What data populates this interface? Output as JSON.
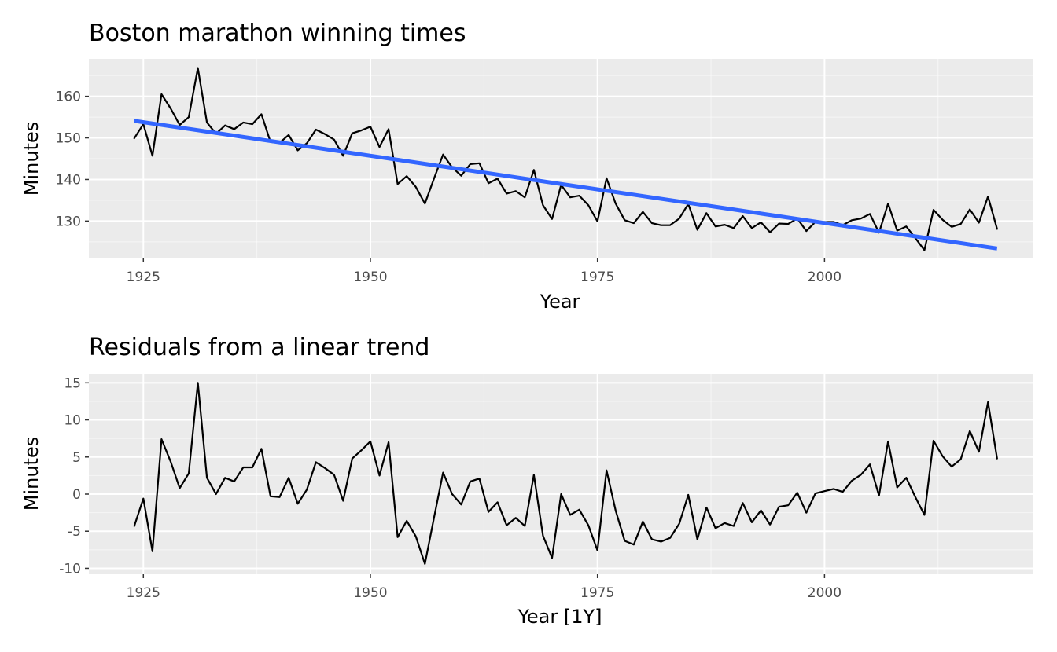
{
  "chart_data": [
    {
      "type": "line",
      "title": "Boston marathon winning times",
      "xlabel": "Year",
      "ylabel": "Minutes",
      "xlim": [
        1919,
        2023
      ],
      "ylim": [
        121,
        169
      ],
      "x_ticks": [
        1925,
        1950,
        1975,
        2000
      ],
      "y_ticks": [
        130,
        140,
        150,
        160
      ],
      "grid": true,
      "series": [
        {
          "color": "#000000",
          "x": [
            1924,
            1925,
            1926,
            1927,
            1928,
            1929,
            1930,
            1931,
            1932,
            1933,
            1934,
            1935,
            1936,
            1937,
            1938,
            1939,
            1940,
            1941,
            1942,
            1943,
            1944,
            1945,
            1946,
            1947,
            1948,
            1949,
            1950,
            1951,
            1952,
            1953,
            1954,
            1955,
            1956,
            1957,
            1958,
            1959,
            1960,
            1961,
            1962,
            1963,
            1964,
            1965,
            1966,
            1967,
            1968,
            1969,
            1970,
            1971,
            1972,
            1973,
            1974,
            1975,
            1976,
            1977,
            1978,
            1979,
            1980,
            1981,
            1982,
            1983,
            1984,
            1985,
            1986,
            1987,
            1988,
            1989,
            1990,
            1991,
            1992,
            1993,
            1994,
            1995,
            1996,
            1997,
            1998,
            1999,
            2000,
            2001,
            2002,
            2003,
            2004,
            2005,
            2006,
            2007,
            2008,
            2009,
            2010,
            2011,
            2012,
            2013,
            2014,
            2015,
            2016,
            2017,
            2018,
            2019
          ],
          "values": [
            149.9,
            153.3,
            145.7,
            160.5,
            157.1,
            153.1,
            155.0,
            166.8,
            153.7,
            151.0,
            153.0,
            152.1,
            153.7,
            153.3,
            155.7,
            149.0,
            148.8,
            150.7,
            147.0,
            148.7,
            152.0,
            150.9,
            149.6,
            145.7,
            151.1,
            151.8,
            152.7,
            147.8,
            152.1,
            138.9,
            140.8,
            138.2,
            134.2,
            140.2,
            146.0,
            142.9,
            140.9,
            143.7,
            143.9,
            139.1,
            140.2,
            136.6,
            137.2,
            135.7,
            142.3,
            133.8,
            130.5,
            138.7,
            135.7,
            136.1,
            133.8,
            129.9,
            140.3,
            134.2,
            130.2,
            129.5,
            132.2,
            129.5,
            129.0,
            129.0,
            130.6,
            134.1,
            127.9,
            131.9,
            128.7,
            129.1,
            128.3,
            131.2,
            128.3,
            129.7,
            127.3,
            129.4,
            129.3,
            130.6,
            127.6,
            129.8,
            129.8,
            129.8,
            129.0,
            130.2,
            130.6,
            131.7,
            127.2,
            134.2,
            127.7,
            128.7,
            125.9,
            123.0,
            132.7,
            130.3,
            128.6,
            129.3,
            132.8,
            129.6,
            135.9,
            128.1
          ]
        },
        {
          "color": "#3366ff",
          "x": [
            1924,
            2019
          ],
          "values": [
            154.1,
            123.4
          ]
        }
      ]
    },
    {
      "type": "line",
      "title": "Residuals from a linear trend",
      "xlabel": "Year [1Y]",
      "ylabel": "Minutes",
      "xlim": [
        1919,
        2023
      ],
      "ylim": [
        -10.8,
        16.2
      ],
      "x_ticks": [
        1925,
        1950,
        1975,
        2000
      ],
      "y_ticks": [
        -10,
        -5,
        0,
        5,
        10,
        15
      ],
      "grid": true,
      "series": [
        {
          "color": "#000000",
          "x": [
            1924,
            1925,
            1926,
            1927,
            1928,
            1929,
            1930,
            1931,
            1932,
            1933,
            1934,
            1935,
            1936,
            1937,
            1938,
            1939,
            1940,
            1941,
            1942,
            1943,
            1944,
            1945,
            1946,
            1947,
            1948,
            1949,
            1950,
            1951,
            1952,
            1953,
            1954,
            1955,
            1956,
            1957,
            1958,
            1959,
            1960,
            1961,
            1962,
            1963,
            1964,
            1965,
            1966,
            1967,
            1968,
            1969,
            1970,
            1971,
            1972,
            1973,
            1974,
            1975,
            1976,
            1977,
            1978,
            1979,
            1980,
            1981,
            1982,
            1983,
            1984,
            1985,
            1986,
            1987,
            1988,
            1989,
            1990,
            1991,
            1992,
            1993,
            1994,
            1995,
            1996,
            1997,
            1998,
            1999,
            2000,
            2001,
            2002,
            2003,
            2004,
            2005,
            2006,
            2007,
            2008,
            2009,
            2010,
            2011,
            2012,
            2013,
            2014,
            2015,
            2016,
            2017,
            2018,
            2019
          ],
          "values": [
            -4.3,
            -0.6,
            -7.7,
            7.4,
            4.4,
            0.8,
            2.8,
            15.0,
            2.2,
            0.0,
            2.2,
            1.7,
            3.6,
            3.6,
            6.1,
            -0.3,
            -0.4,
            2.2,
            -1.3,
            0.6,
            4.3,
            3.5,
            2.6,
            -0.9,
            4.8,
            5.9,
            7.1,
            2.5,
            7.0,
            -5.8,
            -3.6,
            -5.7,
            -9.4,
            -3.2,
            2.9,
            0.0,
            -1.4,
            1.7,
            2.1,
            -2.4,
            -1.1,
            -4.2,
            -3.2,
            -4.3,
            2.6,
            -5.6,
            -8.6,
            0.0,
            -2.8,
            -2.1,
            -4.2,
            -7.6,
            3.2,
            -2.2,
            -6.3,
            -6.8,
            -3.7,
            -6.1,
            -6.4,
            -5.9,
            -4.0,
            -0.1,
            -6.1,
            -1.8,
            -4.6,
            -3.9,
            -4.3,
            -1.2,
            -3.8,
            -2.2,
            -4.1,
            -1.7,
            -1.5,
            0.2,
            -2.5,
            0.1,
            0.4,
            0.7,
            0.3,
            1.8,
            2.6,
            4.0,
            -0.2,
            7.1,
            0.9,
            2.2,
            -0.4,
            -2.8,
            7.2,
            5.1,
            3.7,
            4.7,
            8.5,
            5.7,
            12.4,
            4.8
          ]
        }
      ]
    }
  ]
}
